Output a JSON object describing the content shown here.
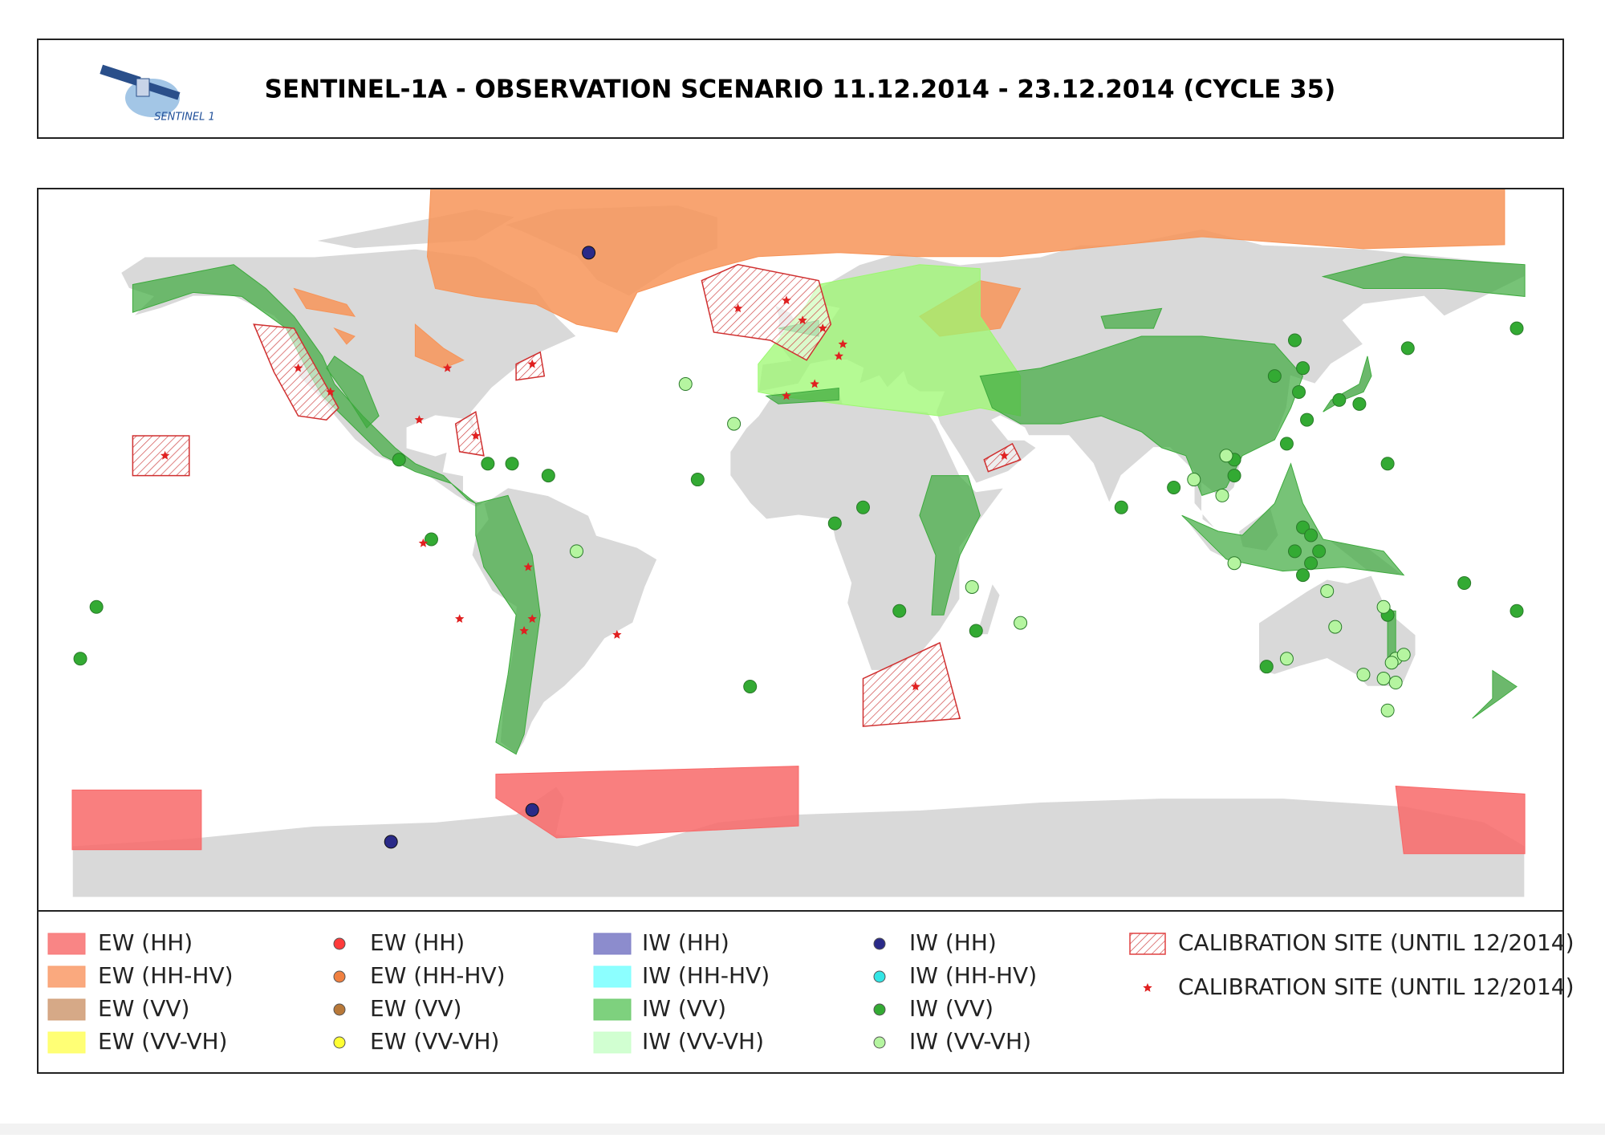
{
  "header": {
    "title": "SENTINEL-1A - OBSERVATION SCENARIO 11.12.2014 - 23.12.2014 (CYCLE 35)",
    "logo_text": "SENTINEL 1"
  },
  "legend": {
    "columns": [
      {
        "items": [
          {
            "label": "EW (HH)",
            "symbol": "area",
            "color": "#f87878"
          },
          {
            "label": "EW (HH-HV)",
            "symbol": "area",
            "color": "#f9a070"
          },
          {
            "label": "EW (VV)",
            "symbol": "area",
            "color": "#d2a07a"
          },
          {
            "label": "EW (VV-VH)",
            "symbol": "area",
            "color": "#ffff66"
          }
        ]
      },
      {
        "items": [
          {
            "label": "EW (HH)",
            "symbol": "dot",
            "color": "#ff3b3b"
          },
          {
            "label": "EW (HH-HV)",
            "symbol": "dot",
            "color": "#f08040"
          },
          {
            "label": "EW (VV)",
            "symbol": "dot",
            "color": "#b87838"
          },
          {
            "label": "EW (VV-VH)",
            "symbol": "dot",
            "color": "#ffff33"
          }
        ]
      },
      {
        "items": [
          {
            "label": "IW (HH)",
            "symbol": "area",
            "color": "#7f7fc8"
          },
          {
            "label": "IW (HH-HV)",
            "symbol": "area",
            "color": "#80ffff"
          },
          {
            "label": "IW (VV)",
            "symbol": "area",
            "color": "#70cc70"
          },
          {
            "label": "IW (VV-VH)",
            "symbol": "area",
            "color": "#ccffcc"
          }
        ]
      },
      {
        "items": [
          {
            "label": "IW (HH)",
            "symbol": "dot",
            "color": "#2a2a88"
          },
          {
            "label": "IW (HH-HV)",
            "symbol": "dot",
            "color": "#33e5e5"
          },
          {
            "label": "IW (VV)",
            "symbol": "dot",
            "color": "#33aa33"
          },
          {
            "label": "IW (VV-VH)",
            "symbol": "dot",
            "color": "#b5f5a0"
          }
        ]
      },
      {
        "items": [
          {
            "label": "CALIBRATION SITE (UNTIL 12/2014)",
            "symbol": "hatch",
            "color": "#e04040"
          },
          {
            "label": "CALIBRATION SITE (UNTIL 12/2014)",
            "symbol": "star",
            "color": "#e02020"
          }
        ]
      }
    ]
  }
}
